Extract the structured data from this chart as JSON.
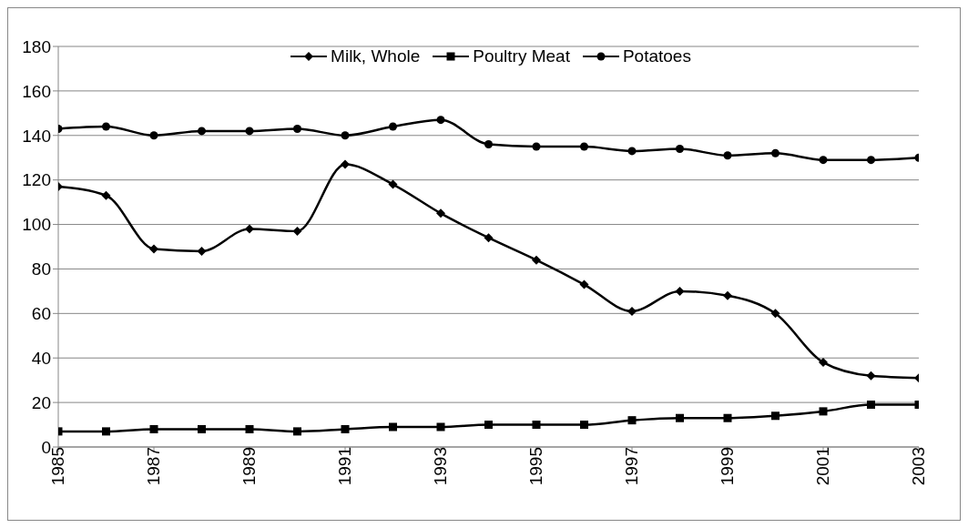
{
  "chart_data": {
    "type": "line",
    "x": [
      1985,
      1986,
      1987,
      1988,
      1989,
      1990,
      1991,
      1992,
      1993,
      1994,
      1995,
      1996,
      1997,
      1998,
      1999,
      2000,
      2001,
      2002,
      2003
    ],
    "xlim": [
      1985,
      2003
    ],
    "xticks": [
      1985,
      1987,
      1989,
      1991,
      1993,
      1995,
      1997,
      1999,
      2001,
      2003
    ],
    "ylim": [
      0,
      180
    ],
    "yticks": [
      0,
      20,
      40,
      60,
      80,
      100,
      120,
      140,
      160,
      180
    ],
    "grid": "y",
    "legend": "top",
    "series": [
      {
        "name": "Milk, Whole",
        "color": "#000000",
        "marker": "diamond",
        "values": [
          117,
          113,
          89,
          88,
          98,
          97,
          127,
          118,
          105,
          94,
          84,
          73,
          61,
          70,
          68,
          60,
          38,
          32,
          31
        ]
      },
      {
        "name": "Poultry Meat",
        "color": "#000000",
        "marker": "square",
        "values": [
          7,
          7,
          8,
          8,
          8,
          7,
          8,
          9,
          9,
          10,
          10,
          10,
          12,
          13,
          13,
          14,
          16,
          19,
          19
        ]
      },
      {
        "name": "Potatoes",
        "color": "#000000",
        "marker": "circle",
        "values": [
          143,
          144,
          140,
          142,
          142,
          143,
          140,
          144,
          147,
          136,
          135,
          135,
          133,
          134,
          131,
          132,
          129,
          129,
          130
        ]
      }
    ]
  }
}
